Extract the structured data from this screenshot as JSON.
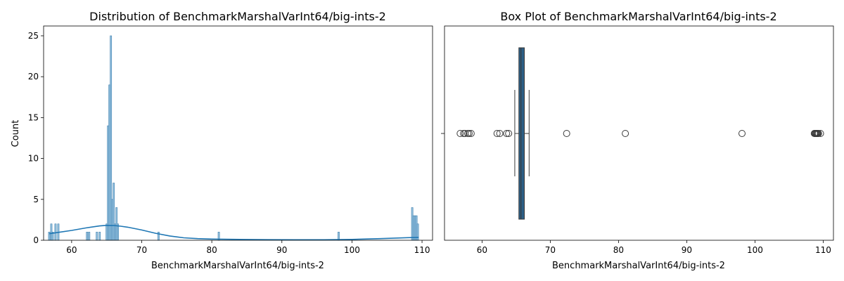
{
  "chart_data": [
    {
      "type": "histogram",
      "title": "Distribution of BenchmarkMarshalVarInt64/big-ints-2",
      "xlabel": "BenchmarkMarshalVarInt64/big-ints-2",
      "ylabel": "Count",
      "xlim": [
        56,
        111.5
      ],
      "ylim": [
        0,
        26.2
      ],
      "xticks": [
        60,
        70,
        80,
        90,
        100,
        110
      ],
      "yticks": [
        0,
        5,
        10,
        15,
        20,
        25
      ],
      "bin_width": 0.22,
      "bins": [
        {
          "x": 56.8,
          "count": 1
        },
        {
          "x": 57.1,
          "count": 2
        },
        {
          "x": 57.3,
          "count": 1
        },
        {
          "x": 57.7,
          "count": 2
        },
        {
          "x": 58.1,
          "count": 2
        },
        {
          "x": 62.2,
          "count": 1
        },
        {
          "x": 62.5,
          "count": 1
        },
        {
          "x": 63.6,
          "count": 1
        },
        {
          "x": 64.0,
          "count": 1
        },
        {
          "x": 65.0,
          "count": 2
        },
        {
          "x": 65.2,
          "count": 14
        },
        {
          "x": 65.4,
          "count": 19
        },
        {
          "x": 65.6,
          "count": 25
        },
        {
          "x": 65.8,
          "count": 5
        },
        {
          "x": 66.0,
          "count": 7
        },
        {
          "x": 66.2,
          "count": 2
        },
        {
          "x": 66.4,
          "count": 4
        },
        {
          "x": 66.6,
          "count": 2
        },
        {
          "x": 72.4,
          "count": 1
        },
        {
          "x": 81.0,
          "count": 1
        },
        {
          "x": 98.1,
          "count": 1
        },
        {
          "x": 108.6,
          "count": 4
        },
        {
          "x": 108.8,
          "count": 3
        },
        {
          "x": 109.0,
          "count": 3
        },
        {
          "x": 109.2,
          "count": 3
        },
        {
          "x": 109.4,
          "count": 2
        }
      ],
      "kde": {
        "x": [
          56.8,
          58,
          60,
          62,
          64,
          65,
          66,
          67,
          68,
          70,
          72,
          74,
          76,
          78,
          80,
          84,
          88,
          92,
          96,
          100,
          104,
          108,
          109.5
        ],
        "y": [
          0.8,
          0.95,
          1.2,
          1.5,
          1.75,
          1.82,
          1.8,
          1.72,
          1.6,
          1.25,
          0.85,
          0.52,
          0.3,
          0.2,
          0.15,
          0.1,
          0.07,
          0.06,
          0.06,
          0.1,
          0.2,
          0.32,
          0.35
        ]
      }
    },
    {
      "type": "box",
      "title": "Box Plot of BenchmarkMarshalVarInt64/big-ints-2",
      "xlabel": "BenchmarkMarshalVarInt64/big-ints-2",
      "xlim": [
        54.5,
        111.5
      ],
      "xticks": [
        60,
        70,
        80,
        90,
        100,
        110
      ],
      "q1": 65.4,
      "median": 65.7,
      "q3": 66.2,
      "whisker_low": 64.8,
      "whisker_high": 66.9,
      "fliers": [
        56.8,
        57.3,
        57.5,
        57.9,
        58.1,
        58.4,
        62.2,
        62.6,
        63.6,
        63.9,
        72.4,
        81.0,
        98.1,
        108.7,
        108.8,
        108.9,
        109.0,
        109.1,
        109.2,
        109.3,
        109.6
      ]
    }
  ]
}
